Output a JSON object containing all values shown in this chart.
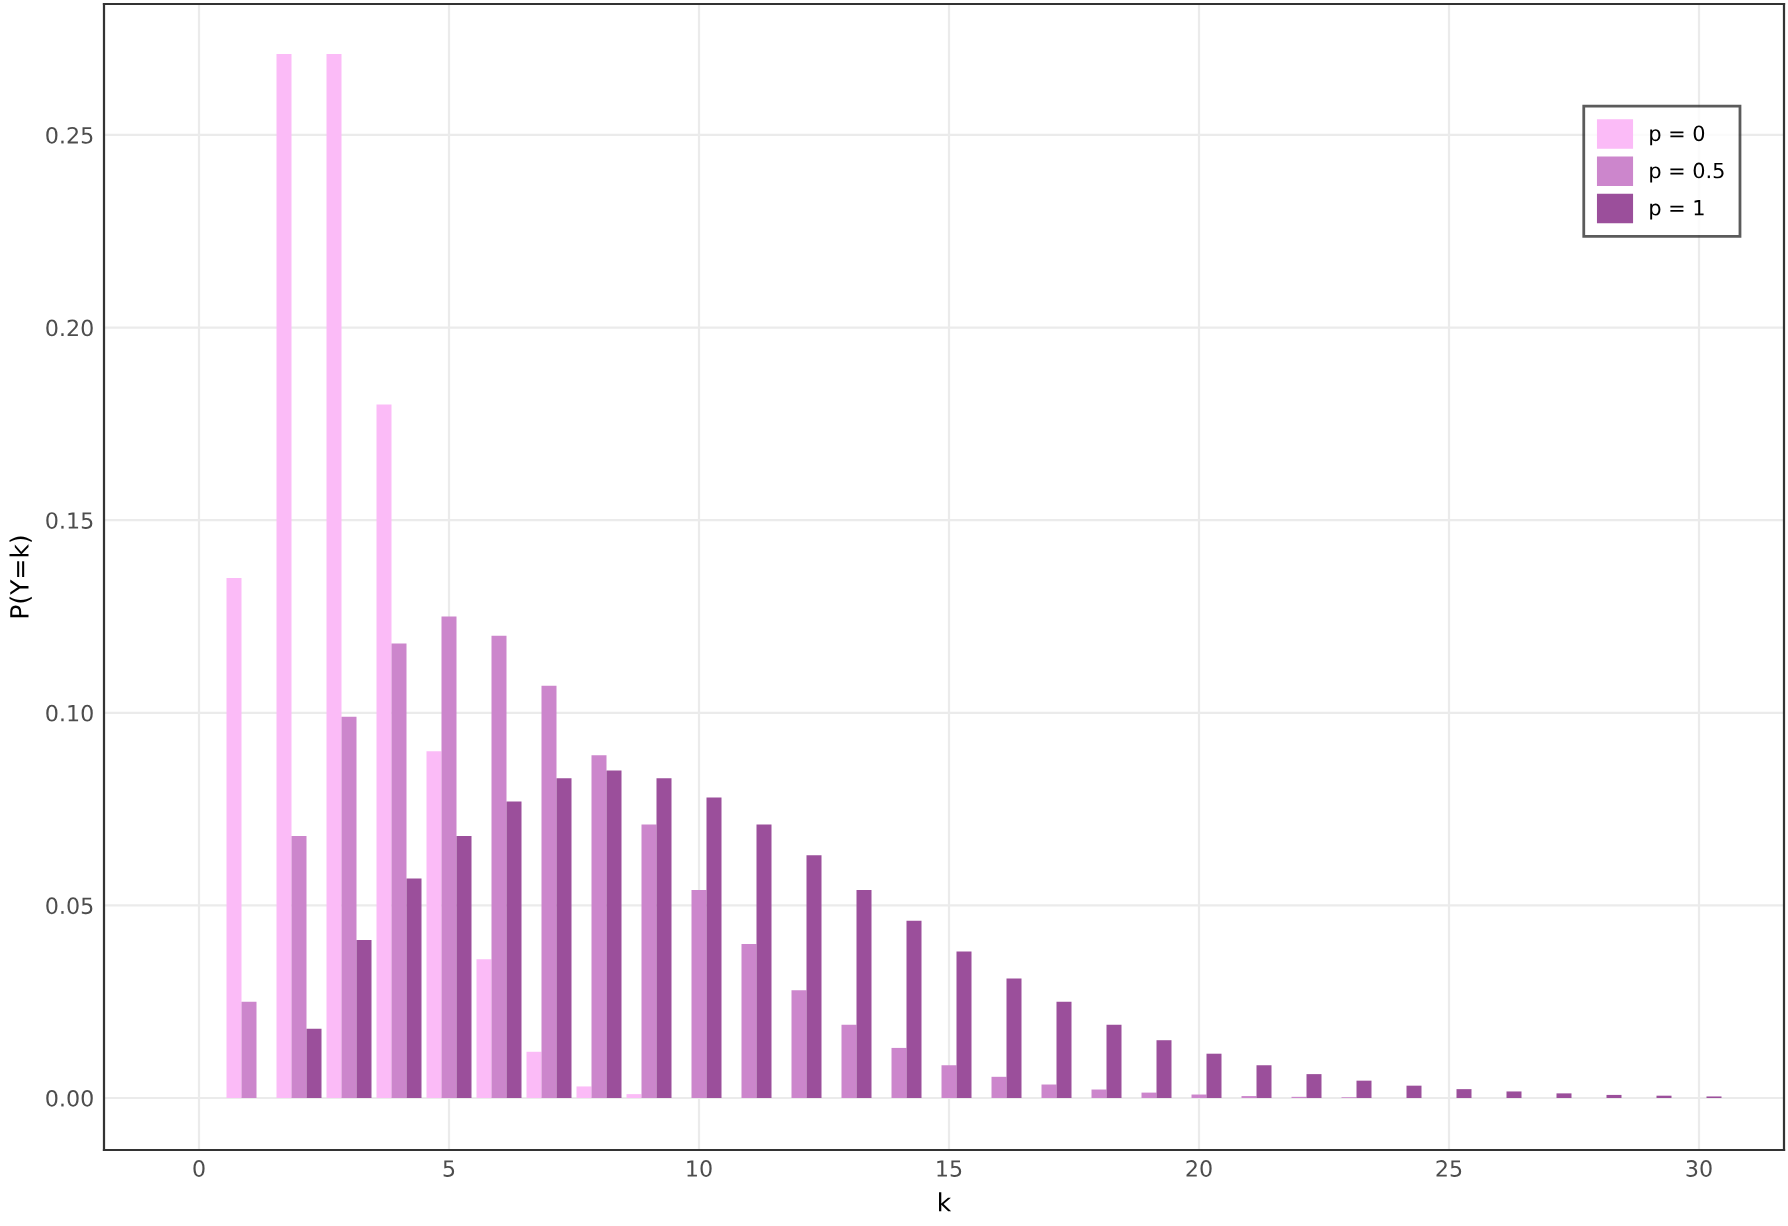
{
  "chart_data": {
    "type": "bar",
    "xlabel": "k",
    "ylabel": "P(Y=k)",
    "x": [
      1,
      2,
      3,
      4,
      5,
      6,
      7,
      8,
      9,
      10,
      11,
      12,
      13,
      14,
      15,
      16,
      17,
      18,
      19,
      20,
      21,
      22,
      23,
      24,
      25,
      26,
      27,
      28,
      29,
      30
    ],
    "series": [
      {
        "name": "p = 0",
        "color": "#fbbbf7",
        "values": [
          0.135,
          0.271,
          0.271,
          0.18,
          0.09,
          0.036,
          0.012,
          0.003,
          0.001,
          null,
          null,
          null,
          null,
          null,
          null,
          null,
          null,
          null,
          null,
          null,
          null,
          null,
          null,
          null,
          null,
          null,
          null,
          null,
          null,
          null
        ]
      },
      {
        "name": "p = 0.5",
        "color": "#cc86cc",
        "values": [
          0.025,
          0.068,
          0.099,
          0.118,
          0.125,
          0.12,
          0.107,
          0.089,
          0.071,
          0.054,
          0.04,
          0.028,
          0.019,
          0.013,
          0.0085,
          0.0055,
          0.0035,
          0.0022,
          0.0014,
          0.0009,
          0.0005,
          0.0003,
          0.0002,
          null,
          null,
          null,
          null,
          null,
          null,
          null
        ]
      },
      {
        "name": "p = 1",
        "color": "#9b4f9b",
        "values": [
          null,
          0.018,
          0.041,
          0.057,
          0.068,
          0.077,
          0.083,
          0.085,
          0.083,
          0.078,
          0.071,
          0.063,
          0.054,
          0.046,
          0.038,
          0.031,
          0.025,
          0.019,
          0.015,
          0.0115,
          0.0085,
          0.0062,
          0.0045,
          0.0032,
          0.0023,
          0.0017,
          0.0012,
          0.0008,
          0.0006,
          0.0004
        ]
      }
    ],
    "xlim": [
      -1.9,
      31.7
    ],
    "xticks": [
      0,
      5,
      10,
      15,
      20,
      25,
      30
    ],
    "ylim": [
      -0.0135,
      0.284
    ],
    "yticks": [
      {
        "value": 0,
        "label": "0.00"
      },
      {
        "value": 0.05,
        "label": "0.05"
      },
      {
        "value": 0.1,
        "label": "0.10"
      },
      {
        "value": 0.15,
        "label": "0.15"
      },
      {
        "value": 0.2,
        "label": "0.20"
      },
      {
        "value": 0.25,
        "label": "0.25"
      }
    ],
    "grid": true,
    "legend": "top right"
  }
}
